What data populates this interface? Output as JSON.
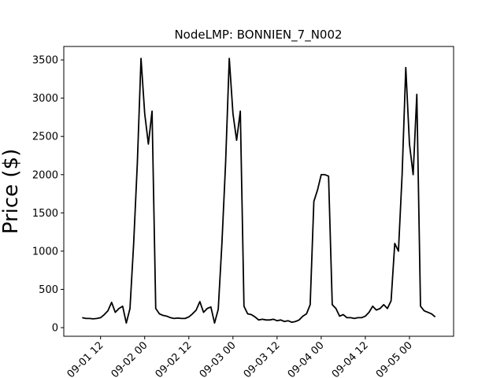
{
  "chart_data": {
    "type": "line",
    "title": "NodeLMP: BONNIEN_7_N002",
    "y_label": "Price ($)",
    "x": [
      "09-01 07",
      "09-01 08",
      "09-01 09",
      "09-01 10",
      "09-01 11",
      "09-01 12",
      "09-01 13",
      "09-01 14",
      "09-01 15",
      "09-01 16",
      "09-01 17",
      "09-01 18",
      "09-01 19",
      "09-01 20",
      "09-01 21",
      "09-01 22",
      "09-01 23",
      "09-02 00",
      "09-02 01",
      "09-02 02",
      "09-02 03",
      "09-02 04",
      "09-02 05",
      "09-02 06",
      "09-02 07",
      "09-02 08",
      "09-02 09",
      "09-02 10",
      "09-02 11",
      "09-02 12",
      "09-02 13",
      "09-02 14",
      "09-02 15",
      "09-02 16",
      "09-02 17",
      "09-02 18",
      "09-02 19",
      "09-02 20",
      "09-02 21",
      "09-02 22",
      "09-02 23",
      "09-03 00",
      "09-03 01",
      "09-03 02",
      "09-03 03",
      "09-03 04",
      "09-03 05",
      "09-03 06",
      "09-03 07",
      "09-03 08",
      "09-03 09",
      "09-03 10",
      "09-03 11",
      "09-03 12",
      "09-03 13",
      "09-03 14",
      "09-03 15",
      "09-03 16",
      "09-03 17",
      "09-03 18",
      "09-03 19",
      "09-03 20",
      "09-03 21",
      "09-03 22",
      "09-03 23",
      "09-04 00",
      "09-04 01",
      "09-04 02",
      "09-04 03",
      "09-04 04",
      "09-04 05",
      "09-04 06",
      "09-04 07",
      "09-04 08",
      "09-04 09",
      "09-04 10",
      "09-04 11",
      "09-04 12",
      "09-04 13",
      "09-04 14",
      "09-04 15",
      "09-04 16",
      "09-04 17",
      "09-04 18",
      "09-04 19",
      "09-04 20",
      "09-04 21",
      "09-04 22",
      "09-04 23",
      "09-05 00",
      "09-05 01",
      "09-05 02",
      "09-05 03",
      "09-05 04",
      "09-05 05",
      "09-05 06",
      "09-05 07"
    ],
    "series": [
      {
        "name": "BONNIEN_7_N002",
        "color": "#000000",
        "values": [
          130,
          120,
          120,
          115,
          120,
          130,
          170,
          220,
          330,
          200,
          250,
          280,
          60,
          250,
          1100,
          2150,
          3520,
          2800,
          2400,
          2830,
          250,
          180,
          160,
          150,
          130,
          120,
          125,
          120,
          120,
          140,
          180,
          230,
          340,
          200,
          250,
          270,
          60,
          240,
          1100,
          2150,
          3520,
          2800,
          2450,
          2830,
          280,
          180,
          170,
          140,
          100,
          110,
          100,
          100,
          110,
          90,
          100,
          80,
          90,
          70,
          80,
          100,
          150,
          180,
          300,
          1650,
          1800,
          2000,
          2000,
          1980,
          300,
          250,
          150,
          170,
          130,
          130,
          120,
          130,
          130,
          150,
          200,
          280,
          230,
          250,
          300,
          250,
          350,
          1100,
          1000,
          2000,
          3400,
          2400,
          2000,
          3050,
          280,
          220,
          200,
          180,
          140
        ]
      }
    ],
    "xlim": [
      "09-01 02",
      "09-05 12"
    ],
    "xticks": [
      "09-01 12",
      "09-02 00",
      "09-02 12",
      "09-03 00",
      "09-03 12",
      "09-04 00",
      "09-04 12",
      "09-05 00"
    ],
    "ylim": [
      -113,
      3676
    ],
    "yticks": [
      0,
      500,
      1000,
      1500,
      2000,
      2500,
      3000,
      3500
    ]
  }
}
